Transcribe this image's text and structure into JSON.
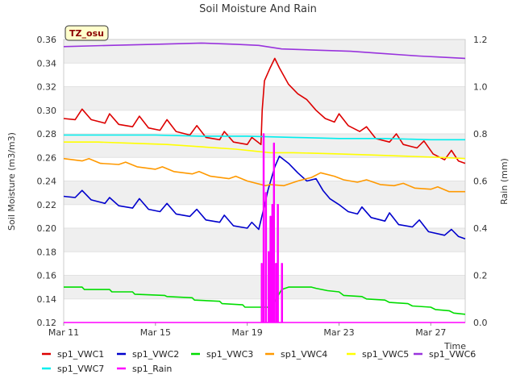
{
  "chart_data": {
    "type": "line",
    "title": "Soil Moisture And Rain",
    "xlabel": "Time",
    "ylabel": "Soil Moisture (m3/m3)",
    "y2label": "Rain (mm)",
    "site_badge": "TZ_osu",
    "x_range_days": [
      0,
      17.5
    ],
    "x_ticks": [
      {
        "day": 0,
        "label": "Mar 11"
      },
      {
        "day": 4,
        "label": "Mar 15"
      },
      {
        "day": 8,
        "label": "Mar 19"
      },
      {
        "day": 12,
        "label": "Mar 23"
      },
      {
        "day": 16,
        "label": "Mar 27"
      }
    ],
    "ylim": [
      0.12,
      0.36
    ],
    "y_ticks": [
      "0.12",
      "0.14",
      "0.16",
      "0.18",
      "0.20",
      "0.22",
      "0.24",
      "0.26",
      "0.28",
      "0.30",
      "0.32",
      "0.34",
      "0.36"
    ],
    "y2lim": [
      0.0,
      1.2
    ],
    "y2_ticks": [
      "0.0",
      "0.2",
      "0.4",
      "0.6",
      "0.8",
      "1.0",
      "1.2"
    ],
    "grid": "horizontal bands",
    "legend_position": "bottom",
    "series": [
      {
        "name": "sp1_VWC1",
        "axis": "left",
        "color": "#dd0000",
        "points": [
          [
            0.0,
            0.293
          ],
          [
            0.5,
            0.292
          ],
          [
            0.8,
            0.301
          ],
          [
            1.2,
            0.292
          ],
          [
            1.8,
            0.289
          ],
          [
            2.0,
            0.297
          ],
          [
            2.4,
            0.288
          ],
          [
            3.0,
            0.286
          ],
          [
            3.3,
            0.295
          ],
          [
            3.7,
            0.285
          ],
          [
            4.2,
            0.283
          ],
          [
            4.5,
            0.292
          ],
          [
            4.9,
            0.282
          ],
          [
            5.5,
            0.279
          ],
          [
            5.8,
            0.287
          ],
          [
            6.2,
            0.277
          ],
          [
            6.8,
            0.275
          ],
          [
            7.0,
            0.282
          ],
          [
            7.4,
            0.273
          ],
          [
            8.0,
            0.271
          ],
          [
            8.2,
            0.277
          ],
          [
            8.6,
            0.271
          ],
          [
            8.65,
            0.3
          ],
          [
            8.75,
            0.325
          ],
          [
            9.0,
            0.336
          ],
          [
            9.2,
            0.344
          ],
          [
            9.4,
            0.336
          ],
          [
            9.8,
            0.322
          ],
          [
            10.2,
            0.314
          ],
          [
            10.6,
            0.309
          ],
          [
            11.0,
            0.3
          ],
          [
            11.4,
            0.293
          ],
          [
            11.8,
            0.29
          ],
          [
            12.0,
            0.297
          ],
          [
            12.4,
            0.287
          ],
          [
            12.9,
            0.282
          ],
          [
            13.2,
            0.286
          ],
          [
            13.6,
            0.276
          ],
          [
            14.2,
            0.273
          ],
          [
            14.5,
            0.28
          ],
          [
            14.8,
            0.271
          ],
          [
            15.4,
            0.268
          ],
          [
            15.7,
            0.274
          ],
          [
            16.1,
            0.263
          ],
          [
            16.6,
            0.258
          ],
          [
            16.9,
            0.266
          ],
          [
            17.2,
            0.257
          ],
          [
            17.5,
            0.255
          ]
        ]
      },
      {
        "name": "sp1_VWC2",
        "axis": "left",
        "color": "#0000cc",
        "points": [
          [
            0.0,
            0.227
          ],
          [
            0.5,
            0.226
          ],
          [
            0.8,
            0.232
          ],
          [
            1.2,
            0.224
          ],
          [
            1.8,
            0.221
          ],
          [
            2.0,
            0.226
          ],
          [
            2.4,
            0.219
          ],
          [
            3.0,
            0.217
          ],
          [
            3.3,
            0.225
          ],
          [
            3.7,
            0.216
          ],
          [
            4.2,
            0.214
          ],
          [
            4.5,
            0.221
          ],
          [
            4.9,
            0.212
          ],
          [
            5.5,
            0.21
          ],
          [
            5.8,
            0.216
          ],
          [
            6.2,
            0.207
          ],
          [
            6.8,
            0.205
          ],
          [
            7.0,
            0.211
          ],
          [
            7.4,
            0.202
          ],
          [
            8.0,
            0.2
          ],
          [
            8.2,
            0.205
          ],
          [
            8.5,
            0.199
          ],
          [
            8.7,
            0.215
          ],
          [
            8.9,
            0.232
          ],
          [
            9.2,
            0.252
          ],
          [
            9.4,
            0.261
          ],
          [
            9.8,
            0.255
          ],
          [
            10.2,
            0.247
          ],
          [
            10.6,
            0.24
          ],
          [
            11.0,
            0.242
          ],
          [
            11.3,
            0.232
          ],
          [
            11.6,
            0.225
          ],
          [
            12.0,
            0.22
          ],
          [
            12.4,
            0.214
          ],
          [
            12.8,
            0.212
          ],
          [
            13.0,
            0.218
          ],
          [
            13.4,
            0.209
          ],
          [
            14.0,
            0.206
          ],
          [
            14.2,
            0.213
          ],
          [
            14.6,
            0.203
          ],
          [
            15.2,
            0.201
          ],
          [
            15.5,
            0.207
          ],
          [
            15.9,
            0.197
          ],
          [
            16.6,
            0.194
          ],
          [
            16.9,
            0.199
          ],
          [
            17.2,
            0.193
          ],
          [
            17.5,
            0.191
          ]
        ]
      },
      {
        "name": "sp1_VWC3",
        "axis": "left",
        "color": "#00dd00",
        "points": [
          [
            0.0,
            0.15
          ],
          [
            0.8,
            0.15
          ],
          [
            0.9,
            0.148
          ],
          [
            2.0,
            0.148
          ],
          [
            2.1,
            0.146
          ],
          [
            3.0,
            0.146
          ],
          [
            3.1,
            0.144
          ],
          [
            4.4,
            0.143
          ],
          [
            4.5,
            0.142
          ],
          [
            5.6,
            0.141
          ],
          [
            5.7,
            0.139
          ],
          [
            6.8,
            0.138
          ],
          [
            6.9,
            0.136
          ],
          [
            7.8,
            0.135
          ],
          [
            7.9,
            0.133
          ],
          [
            9.0,
            0.133
          ],
          [
            9.2,
            0.138
          ],
          [
            9.5,
            0.148
          ],
          [
            9.8,
            0.15
          ],
          [
            10.8,
            0.15
          ],
          [
            11.0,
            0.149
          ],
          [
            11.5,
            0.147
          ],
          [
            12.0,
            0.146
          ],
          [
            12.2,
            0.143
          ],
          [
            13.0,
            0.142
          ],
          [
            13.2,
            0.14
          ],
          [
            14.0,
            0.139
          ],
          [
            14.2,
            0.137
          ],
          [
            15.0,
            0.136
          ],
          [
            15.2,
            0.134
          ],
          [
            16.0,
            0.133
          ],
          [
            16.2,
            0.131
          ],
          [
            16.8,
            0.13
          ],
          [
            17.0,
            0.128
          ],
          [
            17.5,
            0.127
          ]
        ]
      },
      {
        "name": "sp1_VWC4",
        "axis": "left",
        "color": "#ff9900",
        "points": [
          [
            0.0,
            0.259
          ],
          [
            0.8,
            0.257
          ],
          [
            1.1,
            0.259
          ],
          [
            1.6,
            0.255
          ],
          [
            2.4,
            0.254
          ],
          [
            2.7,
            0.256
          ],
          [
            3.2,
            0.252
          ],
          [
            4.0,
            0.25
          ],
          [
            4.3,
            0.252
          ],
          [
            4.8,
            0.248
          ],
          [
            5.6,
            0.246
          ],
          [
            5.9,
            0.248
          ],
          [
            6.4,
            0.244
          ],
          [
            7.2,
            0.242
          ],
          [
            7.5,
            0.244
          ],
          [
            8.0,
            0.24
          ],
          [
            8.8,
            0.236
          ],
          [
            9.0,
            0.237
          ],
          [
            9.6,
            0.236
          ],
          [
            10.2,
            0.24
          ],
          [
            10.8,
            0.243
          ],
          [
            11.2,
            0.247
          ],
          [
            11.8,
            0.244
          ],
          [
            12.2,
            0.241
          ],
          [
            12.8,
            0.239
          ],
          [
            13.2,
            0.241
          ],
          [
            13.8,
            0.237
          ],
          [
            14.4,
            0.236
          ],
          [
            14.8,
            0.238
          ],
          [
            15.3,
            0.234
          ],
          [
            16.0,
            0.233
          ],
          [
            16.3,
            0.235
          ],
          [
            16.8,
            0.231
          ],
          [
            17.5,
            0.231
          ]
        ]
      },
      {
        "name": "sp1_VWC5",
        "axis": "left",
        "color": "#ffff00",
        "points": [
          [
            0.0,
            0.273
          ],
          [
            1.5,
            0.273
          ],
          [
            3.0,
            0.272
          ],
          [
            4.5,
            0.271
          ],
          [
            6.0,
            0.269
          ],
          [
            7.5,
            0.267
          ],
          [
            9.0,
            0.264
          ],
          [
            10.0,
            0.264
          ],
          [
            12.0,
            0.263
          ],
          [
            13.5,
            0.262
          ],
          [
            15.0,
            0.261
          ],
          [
            16.5,
            0.26
          ],
          [
            17.5,
            0.259
          ]
        ]
      },
      {
        "name": "sp1_VWC6",
        "axis": "left",
        "color": "#9933dd",
        "points": [
          [
            0.0,
            0.354
          ],
          [
            2.0,
            0.355
          ],
          [
            4.0,
            0.356
          ],
          [
            6.0,
            0.357
          ],
          [
            7.5,
            0.356
          ],
          [
            8.5,
            0.355
          ],
          [
            9.5,
            0.352
          ],
          [
            11.0,
            0.351
          ],
          [
            12.5,
            0.35
          ],
          [
            14.0,
            0.348
          ],
          [
            15.5,
            0.346
          ],
          [
            16.5,
            0.345
          ],
          [
            17.5,
            0.344
          ]
        ]
      },
      {
        "name": "sp1_VWC7",
        "axis": "left",
        "color": "#00eeee",
        "points": [
          [
            0.0,
            0.279
          ],
          [
            2.0,
            0.279
          ],
          [
            4.0,
            0.279
          ],
          [
            6.0,
            0.278
          ],
          [
            8.0,
            0.278
          ],
          [
            10.0,
            0.277
          ],
          [
            12.0,
            0.276
          ],
          [
            14.0,
            0.276
          ],
          [
            16.0,
            0.275
          ],
          [
            17.5,
            0.275
          ]
        ]
      },
      {
        "name": "sp1_Rain",
        "axis": "right",
        "color": "#ff00ff",
        "points": [
          [
            0.0,
            0.0
          ],
          [
            8.62,
            0.0
          ],
          [
            8.62,
            0.25
          ],
          [
            8.64,
            0.25
          ],
          [
            8.64,
            0.0
          ],
          [
            8.7,
            0.0
          ],
          [
            8.7,
            0.8
          ],
          [
            8.73,
            0.8
          ],
          [
            8.73,
            0.0
          ],
          [
            8.8,
            0.0
          ],
          [
            8.8,
            0.55
          ],
          [
            8.83,
            0.55
          ],
          [
            8.83,
            0.0
          ],
          [
            8.92,
            0.0
          ],
          [
            8.92,
            0.3
          ],
          [
            8.95,
            0.3
          ],
          [
            8.95,
            0.0
          ],
          [
            9.0,
            0.0
          ],
          [
            9.0,
            0.45
          ],
          [
            9.03,
            0.45
          ],
          [
            9.03,
            0.0
          ],
          [
            9.08,
            0.0
          ],
          [
            9.08,
            0.5
          ],
          [
            9.11,
            0.5
          ],
          [
            9.11,
            0.0
          ],
          [
            9.15,
            0.0
          ],
          [
            9.15,
            0.76
          ],
          [
            9.18,
            0.76
          ],
          [
            9.18,
            0.0
          ],
          [
            9.24,
            0.0
          ],
          [
            9.24,
            0.25
          ],
          [
            9.27,
            0.25
          ],
          [
            9.27,
            0.0
          ],
          [
            9.32,
            0.0
          ],
          [
            9.32,
            0.5
          ],
          [
            9.35,
            0.5
          ],
          [
            9.35,
            0.0
          ],
          [
            9.5,
            0.0
          ],
          [
            9.5,
            0.25
          ],
          [
            9.53,
            0.25
          ],
          [
            9.53,
            0.0
          ],
          [
            17.5,
            0.0
          ]
        ]
      }
    ],
    "legend_rows": [
      [
        "sp1_VWC1",
        "sp1_VWC2",
        "sp1_VWC3",
        "sp1_VWC4",
        "sp1_VWC5",
        "sp1_VWC6"
      ],
      [
        "sp1_VWC7",
        "sp1_Rain"
      ]
    ]
  }
}
